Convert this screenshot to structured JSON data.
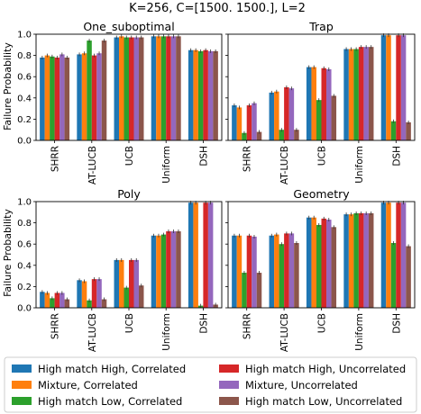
{
  "suptitle": "K=256, C=[1500. 1500.], L=2",
  "ylabel": "Failure Probability",
  "legend": [
    "High match High, Correlated",
    "Mixture, Correlated",
    "High match Low, Correlated",
    "High match High, Uncorrelated",
    "Mixture, Uncorrelated",
    "High match Low, Uncorrelated"
  ],
  "series_colors": [
    "#1f77b4",
    "#ff7f0e",
    "#2ca02c",
    "#d62728",
    "#9467bd",
    "#8c564b"
  ],
  "chart_data": [
    {
      "type": "bar",
      "title": "One_suboptimal",
      "categories": [
        "SHRR",
        "AT-LUCB",
        "UCB",
        "Uniform",
        "DSH"
      ],
      "ylim": [
        0,
        1
      ],
      "yticks": [
        "0.0",
        "0.2",
        "0.4",
        "0.6",
        "0.8",
        "1.0"
      ],
      "series": [
        {
          "name": "High match High, Correlated",
          "values": [
            0.78,
            0.81,
            0.97,
            0.98,
            0.85
          ]
        },
        {
          "name": "Mixture, Correlated",
          "values": [
            0.8,
            0.82,
            0.98,
            0.98,
            0.85
          ]
        },
        {
          "name": "High match Low, Correlated",
          "values": [
            0.79,
            0.94,
            0.97,
            0.98,
            0.84
          ]
        },
        {
          "name": "High match High, Uncorrelated",
          "values": [
            0.78,
            0.8,
            0.97,
            0.98,
            0.85
          ]
        },
        {
          "name": "Mixture, Uncorrelated",
          "values": [
            0.81,
            0.82,
            0.97,
            0.98,
            0.84
          ]
        },
        {
          "name": "High match Low, Uncorrelated",
          "values": [
            0.78,
            0.94,
            0.97,
            0.98,
            0.84
          ]
        }
      ]
    },
    {
      "type": "bar",
      "title": "Trap",
      "categories": [
        "SHRR",
        "AT-LUCB",
        "UCB",
        "Uniform",
        "DSH"
      ],
      "ylim": [
        0,
        1
      ],
      "yticks": [
        "0.0",
        "0.2",
        "0.4",
        "0.6",
        "0.8",
        "1.0"
      ],
      "series": [
        {
          "name": "High match High, Correlated",
          "values": [
            0.33,
            0.45,
            0.69,
            0.86,
            0.99
          ]
        },
        {
          "name": "Mixture, Correlated",
          "values": [
            0.31,
            0.46,
            0.69,
            0.86,
            0.99
          ]
        },
        {
          "name": "High match Low, Correlated",
          "values": [
            0.07,
            0.1,
            0.38,
            0.86,
            0.18
          ]
        },
        {
          "name": "High match High, Uncorrelated",
          "values": [
            0.33,
            0.5,
            0.68,
            0.88,
            0.99
          ]
        },
        {
          "name": "Mixture, Uncorrelated",
          "values": [
            0.35,
            0.49,
            0.67,
            0.88,
            0.99
          ]
        },
        {
          "name": "High match Low, Uncorrelated",
          "values": [
            0.08,
            0.1,
            0.42,
            0.88,
            0.17
          ]
        }
      ]
    },
    {
      "type": "bar",
      "title": "Poly",
      "categories": [
        "SHRR",
        "AT-LUCB",
        "UCB",
        "Uniform",
        "DSH"
      ],
      "ylim": [
        0,
        1
      ],
      "yticks": [
        "0.0",
        "0.2",
        "0.4",
        "0.6",
        "0.8",
        "1.0"
      ],
      "series": [
        {
          "name": "High match High, Correlated",
          "values": [
            0.15,
            0.26,
            0.45,
            0.68,
            0.99
          ]
        },
        {
          "name": "Mixture, Correlated",
          "values": [
            0.14,
            0.25,
            0.45,
            0.68,
            0.99
          ]
        },
        {
          "name": "High match Low, Correlated",
          "values": [
            0.09,
            0.07,
            0.19,
            0.69,
            0.02
          ]
        },
        {
          "name": "High match High, Uncorrelated",
          "values": [
            0.14,
            0.27,
            0.45,
            0.72,
            0.99
          ]
        },
        {
          "name": "Mixture, Uncorrelated",
          "values": [
            0.14,
            0.27,
            0.45,
            0.72,
            0.99
          ]
        },
        {
          "name": "High match Low, Uncorrelated",
          "values": [
            0.08,
            0.08,
            0.21,
            0.72,
            0.03
          ]
        }
      ]
    },
    {
      "type": "bar",
      "title": "Geometry",
      "categories": [
        "SHRR",
        "AT-LUCB",
        "UCB",
        "Uniform",
        "DSH"
      ],
      "ylim": [
        0,
        1
      ],
      "yticks": [
        "0.0",
        "0.2",
        "0.4",
        "0.6",
        "0.8",
        "1.0"
      ],
      "series": [
        {
          "name": "High match High, Correlated",
          "values": [
            0.68,
            0.68,
            0.85,
            0.88,
            0.99
          ]
        },
        {
          "name": "Mixture, Correlated",
          "values": [
            0.68,
            0.69,
            0.85,
            0.88,
            0.99
          ]
        },
        {
          "name": "High match Low, Correlated",
          "values": [
            0.33,
            0.6,
            0.78,
            0.89,
            0.61
          ]
        },
        {
          "name": "High match High, Uncorrelated",
          "values": [
            0.68,
            0.7,
            0.84,
            0.89,
            0.99
          ]
        },
        {
          "name": "Mixture, Uncorrelated",
          "values": [
            0.67,
            0.7,
            0.83,
            0.89,
            0.99
          ]
        },
        {
          "name": "High match Low, Uncorrelated",
          "values": [
            0.33,
            0.61,
            0.76,
            0.89,
            0.58
          ]
        }
      ]
    }
  ]
}
